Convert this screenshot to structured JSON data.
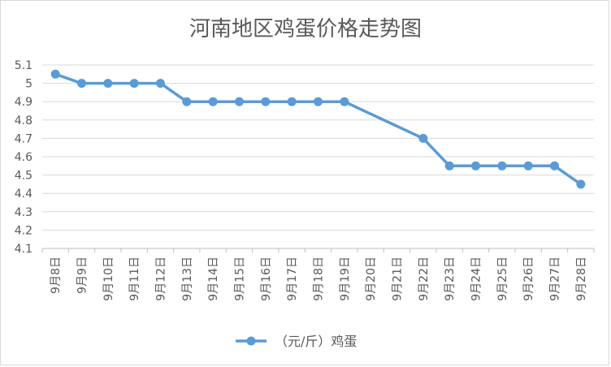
{
  "chart_data": {
    "type": "line",
    "title": "河南地区鸡蛋价格走势图",
    "xlabel": "",
    "ylabel": "",
    "categories": [
      "9月8日",
      "9月9日",
      "9月10日",
      "9月11日",
      "9月12日",
      "9月13日",
      "9月14日",
      "9月15日",
      "9月16日",
      "9月17日",
      "9月18日",
      "9月19日",
      "9月20日",
      "9月21日",
      "9月22日",
      "9月23日",
      "9月24日",
      "9月25日",
      "9月26日",
      "9月27日",
      "9月28日"
    ],
    "series": [
      {
        "name": "（元/斤）鸡蛋",
        "values": [
          5.05,
          5.0,
          5.0,
          5.0,
          5.0,
          4.9,
          4.9,
          4.9,
          4.9,
          4.9,
          4.9,
          4.9,
          null,
          null,
          4.7,
          4.55,
          4.55,
          4.55,
          4.55,
          4.55,
          4.45
        ],
        "color": "#5b9bd5"
      }
    ],
    "ylim": [
      4.1,
      5.1
    ],
    "yticks": [
      "5.1",
      "5",
      "4.9",
      "4.8",
      "4.7",
      "4.6",
      "4.5",
      "4.4",
      "4.3",
      "4.2",
      "4.1"
    ],
    "grid": true,
    "legend": "bottom"
  }
}
